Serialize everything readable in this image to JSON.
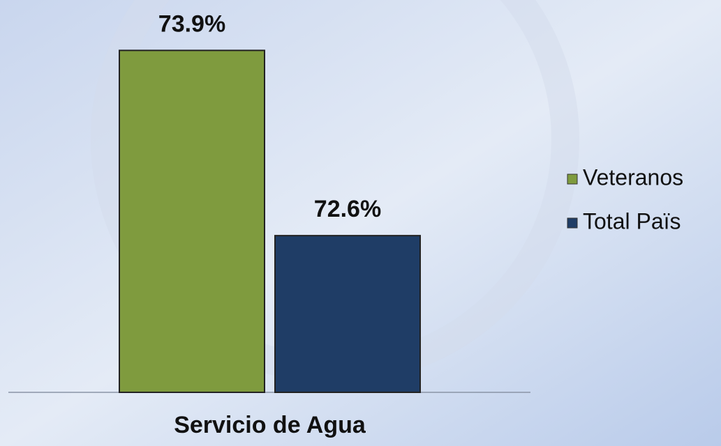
{
  "chart_data": {
    "type": "bar",
    "categories": [
      "Servicio de Agua"
    ],
    "series": [
      {
        "name": "Veteranos",
        "color": "#7f9b3e",
        "values": [
          73.9
        ],
        "value_labels": [
          "73.9%"
        ]
      },
      {
        "name": "Total Païs",
        "color": "#1f3d66",
        "values": [
          72.6
        ],
        "value_labels": [
          "72.6%"
        ]
      }
    ],
    "ylim": [
      71.5,
      74.2
    ],
    "legend": "right"
  }
}
